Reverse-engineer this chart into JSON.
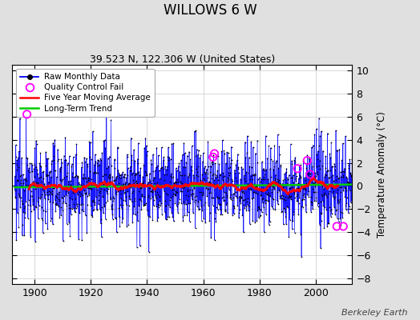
{
  "title": "WILLOWS 6 W",
  "subtitle": "39.523 N, 122.306 W (United States)",
  "ylabel": "Temperature Anomaly (°C)",
  "credit": "Berkeley Earth",
  "ylim": [
    -8.5,
    10.5
  ],
  "xlim": [
    1892,
    2013
  ],
  "xticks": [
    1900,
    1920,
    1940,
    1960,
    1980,
    2000
  ],
  "yticks": [
    -8,
    -6,
    -4,
    -2,
    0,
    2,
    4,
    6,
    8,
    10
  ],
  "fig_bg_color": "#e0e0e0",
  "plot_bg_color": "#ffffff",
  "raw_color": "#0000ff",
  "raw_dot_color": "#000000",
  "qc_color": "#ff00ff",
  "moving_avg_color": "#ff0000",
  "trend_color": "#00cc00",
  "seed": 12345,
  "n_years": 120,
  "start_year": 1893,
  "months_per_year": 12
}
